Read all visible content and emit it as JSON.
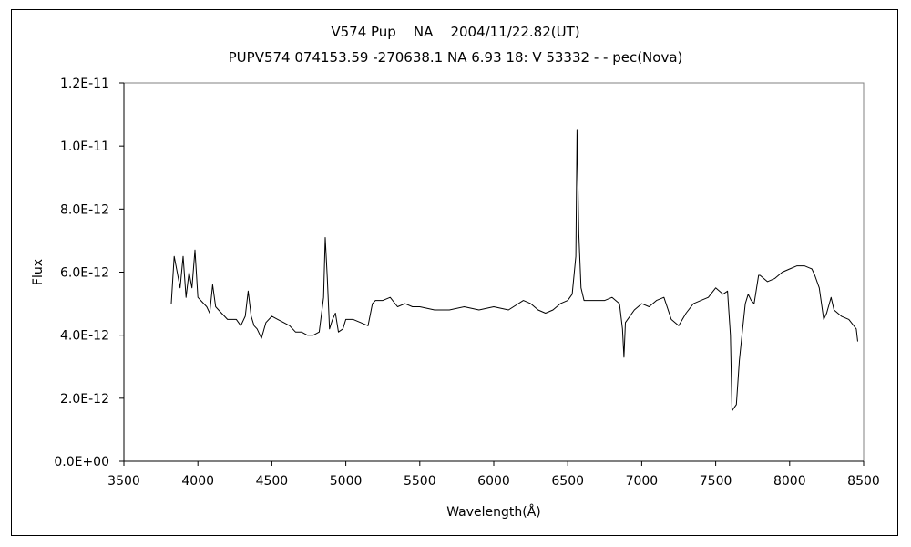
{
  "chart_data": {
    "type": "line",
    "title": "V574 Pup    NA    2004/11/22.82(UT)",
    "subtitle": "PUPV574 074153.59 -270638.1 NA 6.93 18: V 53332 - - pec(Nova)",
    "xlabel": "Wavelength(Å)",
    "ylabel": "Flux",
    "xlim": [
      3500,
      8500
    ],
    "ylim": [
      0,
      1.2e-11
    ],
    "grid": false,
    "x_ticks": [
      "3500",
      "4000",
      "4500",
      "5000",
      "5500",
      "6000",
      "6500",
      "7000",
      "7500",
      "8000",
      "8500"
    ],
    "y_ticks": [
      "0.0E+00",
      "2.0E-12",
      "4.0E-12",
      "6.0E-12",
      "8.0E-12",
      "1.0E-11",
      "1.2E-11"
    ],
    "series": [
      {
        "x": [
          3820,
          3840,
          3860,
          3880,
          3900,
          3920,
          3940,
          3960,
          3980,
          4000,
          4020,
          4040,
          4060,
          4080,
          4100,
          4120,
          4140,
          4160,
          4180,
          4200,
          4230,
          4260,
          4290,
          4320,
          4340,
          4360,
          4380,
          4400,
          4430,
          4460,
          4500,
          4540,
          4580,
          4620,
          4660,
          4700,
          4740,
          4780,
          4820,
          4850,
          4861,
          4875,
          4890,
          4910,
          4930,
          4950,
          4980,
          5000,
          5050,
          5100,
          5150,
          5180,
          5200,
          5250,
          5300,
          5350,
          5400,
          5450,
          5500,
          5600,
          5700,
          5800,
          5900,
          6000,
          6100,
          6200,
          6250,
          6300,
          6350,
          6400,
          6450,
          6500,
          6530,
          6555,
          6563,
          6575,
          6590,
          6610,
          6650,
          6700,
          6750,
          6800,
          6850,
          6870,
          6880,
          6890,
          6920,
          6950,
          7000,
          7050,
          7100,
          7150,
          7200,
          7250,
          7300,
          7350,
          7400,
          7450,
          7500,
          7550,
          7580,
          7600,
          7610,
          7625,
          7640,
          7660,
          7680,
          7700,
          7720,
          7740,
          7760,
          7790,
          7800,
          7850,
          7900,
          7950,
          8000,
          8050,
          8100,
          8150,
          8170,
          8200,
          8230,
          8250,
          8280,
          8300,
          8350,
          8400,
          8450,
          8460
        ],
        "y": [
          5e-12,
          6.5e-12,
          6e-12,
          5.5e-12,
          6.5e-12,
          5.2e-12,
          6e-12,
          5.5e-12,
          6.7e-12,
          5.2e-12,
          5.1e-12,
          5e-12,
          4.9e-12,
          4.7e-12,
          5.6e-12,
          4.9e-12,
          4.8e-12,
          4.7e-12,
          4.6e-12,
          4.5e-12,
          4.5e-12,
          4.5e-12,
          4.3e-12,
          4.6e-12,
          5.4e-12,
          4.6e-12,
          4.3e-12,
          4.2e-12,
          3.9e-12,
          4.4e-12,
          4.6e-12,
          4.5e-12,
          4.4e-12,
          4.3e-12,
          4.1e-12,
          4.1e-12,
          4e-12,
          4e-12,
          4.1e-12,
          5.2e-12,
          7.1e-12,
          5.8e-12,
          4.2e-12,
          4.5e-12,
          4.7e-12,
          4.1e-12,
          4.2e-12,
          4.5e-12,
          4.5e-12,
          4.4e-12,
          4.3e-12,
          5e-12,
          5.1e-12,
          5.1e-12,
          5.2e-12,
          4.9e-12,
          5e-12,
          4.9e-12,
          4.9e-12,
          4.8e-12,
          4.8e-12,
          4.9e-12,
          4.8e-12,
          4.9e-12,
          4.8e-12,
          5.1e-12,
          5e-12,
          4.8e-12,
          4.7e-12,
          4.8e-12,
          5e-12,
          5.1e-12,
          5.3e-12,
          6.5e-12,
          1.05e-11,
          7.2e-12,
          5.5e-12,
          5.1e-12,
          5.1e-12,
          5.1e-12,
          5.1e-12,
          5.2e-12,
          5e-12,
          4.2e-12,
          3.3e-12,
          4.4e-12,
          4.6e-12,
          4.8e-12,
          5e-12,
          4.9e-12,
          5.1e-12,
          5.2e-12,
          4.5e-12,
          4.3e-12,
          4.7e-12,
          5e-12,
          5.1e-12,
          5.2e-12,
          5.5e-12,
          5.3e-12,
          5.4e-12,
          4e-12,
          1.6e-12,
          1.7e-12,
          1.8e-12,
          3.2e-12,
          4.1e-12,
          5e-12,
          5.3e-12,
          5.1e-12,
          5e-12,
          5.9e-12,
          5.9e-12,
          5.7e-12,
          5.8e-12,
          6e-12,
          6.1e-12,
          6.2e-12,
          6.2e-12,
          6.1e-12,
          5.9e-12,
          5.5e-12,
          4.5e-12,
          4.7e-12,
          5.2e-12,
          4.8e-12,
          4.6e-12,
          4.5e-12,
          4.2e-12,
          3.8e-12
        ]
      }
    ]
  }
}
